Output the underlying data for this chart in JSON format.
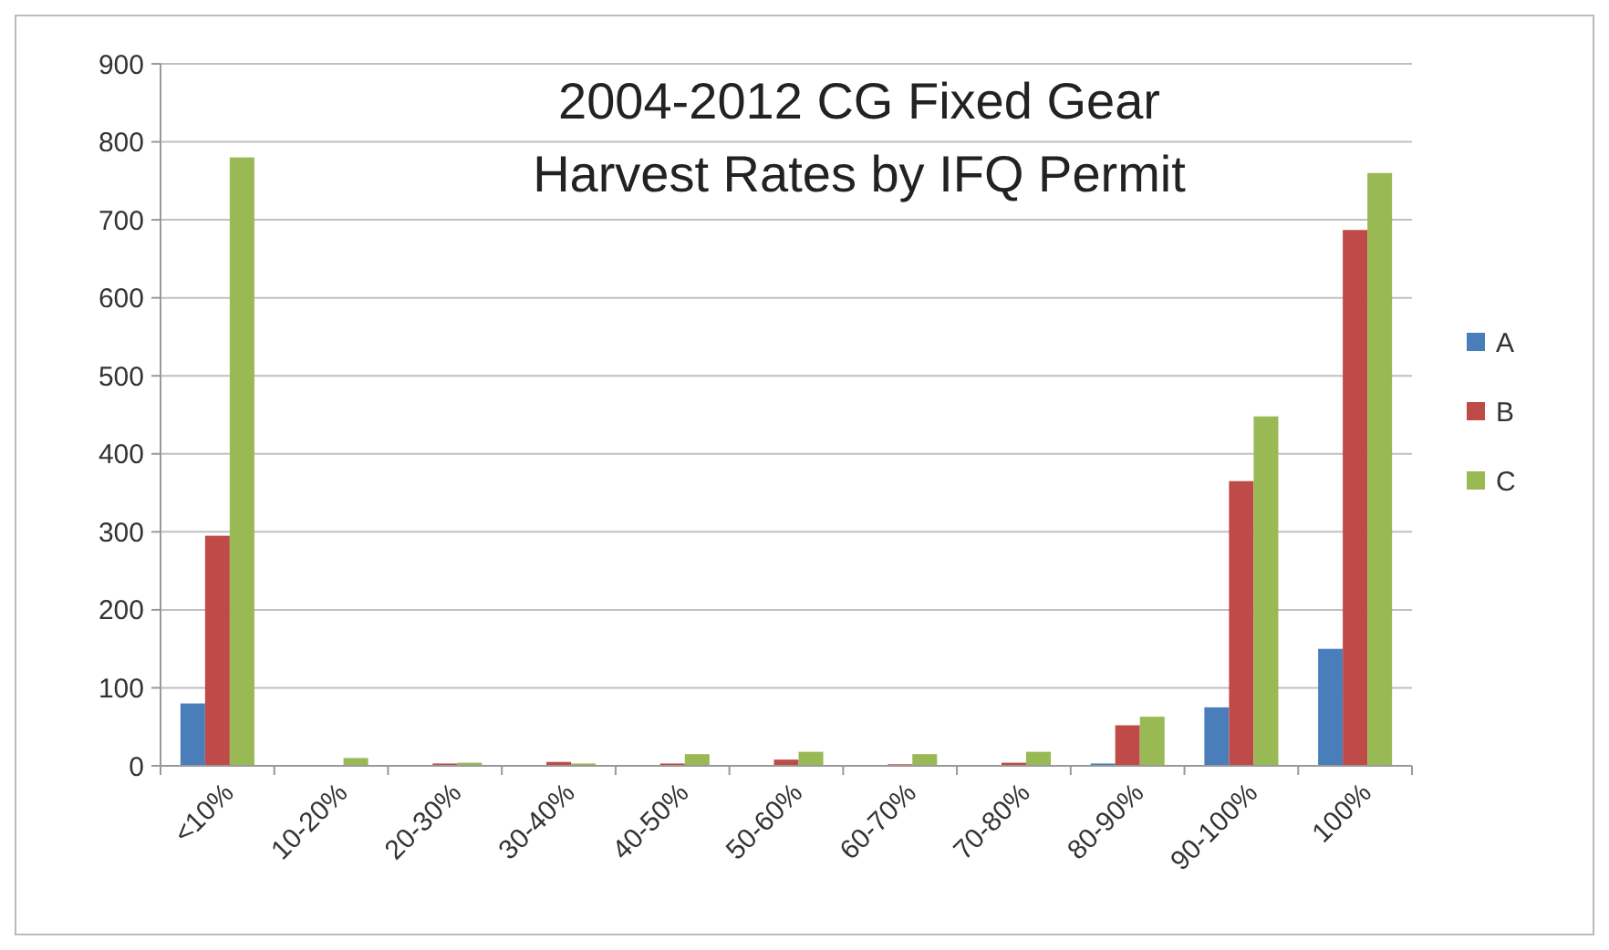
{
  "chart_data": {
    "type": "bar",
    "title": "2004-2012 CG Fixed Gear\nHarvest Rates by IFQ Permit",
    "categories": [
      "<10%",
      "10-20%",
      "20-30%",
      "30-40%",
      "40-50%",
      "50-60%",
      "60-70%",
      "70-80%",
      "80-90%",
      "90-100%",
      "100%"
    ],
    "series": [
      {
        "name": "A",
        "color": "#4a7ebb",
        "values": [
          80,
          0,
          1,
          1,
          1,
          1,
          1,
          1,
          3,
          75,
          150
        ]
      },
      {
        "name": "B",
        "color": "#be4b48",
        "values": [
          295,
          0,
          3,
          5,
          3,
          8,
          2,
          4,
          52,
          365,
          687
        ]
      },
      {
        "name": "C",
        "color": "#98b954",
        "values": [
          780,
          10,
          4,
          3,
          15,
          18,
          15,
          18,
          63,
          448,
          760
        ]
      }
    ],
    "ylim": [
      0,
      900
    ],
    "yticks": [
      0,
      100,
      200,
      300,
      400,
      500,
      600,
      700,
      800,
      900
    ],
    "grid": "y",
    "legend": "right"
  }
}
